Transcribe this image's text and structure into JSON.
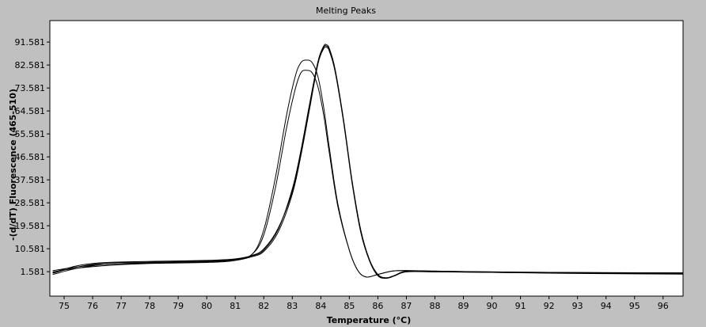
{
  "chart_data": {
    "type": "line",
    "title": "Melting Peaks",
    "xlabel": "Temperature (°C)",
    "ylabel": "-(d/dT) Fluorescence (465-510)",
    "xlim": [
      74.5,
      96.7
    ],
    "ylim": [
      -8,
      100
    ],
    "x_ticks": [
      75,
      76,
      77,
      78,
      79,
      80,
      81,
      82,
      83,
      84,
      85,
      86,
      87,
      88,
      89,
      90,
      91,
      92,
      93,
      94,
      95,
      96
    ],
    "y_ticks": [
      "1.581",
      "10.581",
      "19.581",
      "28.581",
      "37.581",
      "46.581",
      "55.581",
      "64.581",
      "73.581",
      "82.581",
      "91.581"
    ],
    "grid": false,
    "series": [
      {
        "x": [
          74.6,
          75.5,
          76.5,
          78,
          80,
          81,
          81.6,
          82,
          82.4,
          82.8,
          83.1,
          83.3,
          83.5,
          83.7,
          83.9,
          84.1,
          84.3,
          84.6,
          85.0,
          85.3,
          85.6,
          86.0,
          86.5,
          87,
          88,
          90,
          92,
          94,
          96.7
        ],
        "y": [
          2,
          3.5,
          4.5,
          5,
          5.5,
          6.5,
          8.5,
          18,
          38,
          63,
          78,
          83.5,
          84.5,
          83.5,
          78,
          66,
          50,
          28,
          10,
          2,
          -0.5,
          0.5,
          1.8,
          2,
          1.8,
          1.5,
          1.3,
          1.2,
          1.1
        ]
      },
      {
        "x": [
          74.6,
          75.5,
          76.5,
          78,
          80,
          81,
          81.6,
          82,
          82.4,
          82.8,
          83.1,
          83.3,
          83.5,
          83.7,
          83.9,
          84.1,
          84.3,
          84.6,
          85.0,
          85.3,
          85.6,
          86.0,
          86.5,
          87,
          88,
          90,
          92,
          94,
          96.7
        ],
        "y": [
          1.5,
          3,
          4,
          4.8,
          5.2,
          6,
          8.5,
          16,
          34,
          58,
          73,
          79.5,
          80.5,
          79.5,
          74,
          63,
          48,
          27,
          10,
          2,
          -0.5,
          0.5,
          1.8,
          2,
          1.8,
          1.5,
          1.3,
          1.2,
          1.1
        ]
      },
      {
        "x": [
          74.6,
          75.5,
          76.5,
          78,
          80,
          81,
          81.6,
          82,
          82.5,
          83,
          83.3,
          83.6,
          83.9,
          84.1,
          84.2,
          84.3,
          84.5,
          84.8,
          85.1,
          85.4,
          85.7,
          86.0,
          86.3,
          86.6,
          87,
          88,
          90,
          92,
          94,
          96.7
        ],
        "y": [
          0.5,
          3,
          4.5,
          5,
          5.5,
          6,
          7.5,
          9.5,
          17,
          32,
          47,
          65,
          83,
          89,
          89.5,
          88,
          80,
          60,
          36,
          17,
          6,
          0,
          -1,
          0,
          1.5,
          1.5,
          1.3,
          1.0,
          0.8,
          0.6
        ]
      },
      {
        "x": [
          74.6,
          75.5,
          76.5,
          78,
          80,
          81,
          81.6,
          82,
          82.5,
          83,
          83.3,
          83.6,
          83.9,
          84.1,
          84.2,
          84.3,
          84.5,
          84.8,
          85.1,
          85.4,
          85.7,
          86.0,
          86.3,
          86.6,
          87,
          88,
          90,
          92,
          94,
          96.7
        ],
        "y": [
          1,
          3.5,
          5,
          5.3,
          5.8,
          6.3,
          7.8,
          10,
          18,
          34,
          49,
          67,
          84,
          90,
          90.5,
          89,
          81,
          61,
          37,
          18,
          6.5,
          0.5,
          -0.8,
          0.2,
          1.8,
          1.7,
          1.4,
          1.2,
          1.0,
          0.8
        ]
      },
      {
        "x": [
          74.6,
          75.5,
          76.5,
          78,
          80,
          81,
          81.6,
          82,
          82.5,
          83,
          83.3,
          83.6,
          83.9,
          84.1,
          84.2,
          84.3,
          84.5,
          84.8,
          85.1,
          85.4,
          85.7,
          86.0,
          86.3,
          86.6,
          87,
          88,
          90,
          92,
          94,
          96.7
        ],
        "y": [
          1.2,
          4,
          5.2,
          5.6,
          6,
          6.6,
          8,
          10.5,
          18.5,
          33,
          48,
          66,
          83.5,
          89.5,
          90,
          88.5,
          80.5,
          60.5,
          36.5,
          17.5,
          6.2,
          0.3,
          -0.9,
          0.1,
          1.6,
          1.6,
          1.3,
          1.1,
          0.9,
          0.7
        ]
      }
    ],
    "colors": {
      "background": "#c0c0c0",
      "plot_area": "#ffffff",
      "curve": "#000000",
      "text": "#000000"
    }
  }
}
